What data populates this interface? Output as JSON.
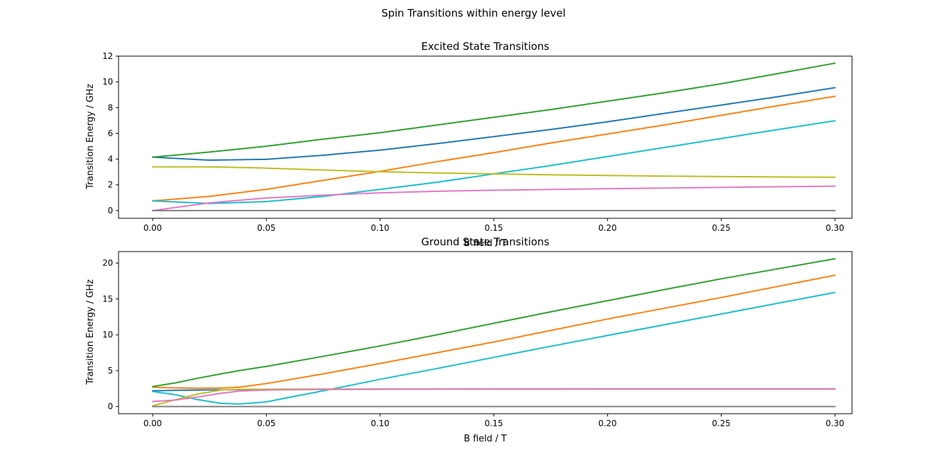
{
  "figure": {
    "title": "Spin Transitions within energy level"
  },
  "chart_data": [
    {
      "type": "line",
      "title": "Excited State Transitions",
      "xlabel": "B field / T",
      "ylabel": "Transition Energy / GHz",
      "xlim": [
        -0.015,
        0.3075
      ],
      "ylim": [
        -0.6,
        12
      ],
      "xticks": [
        0.0,
        0.05,
        0.1,
        0.15,
        0.2,
        0.25,
        0.3
      ],
      "xtick_labels": [
        "0.00",
        "0.05",
        "0.10",
        "0.15",
        "0.20",
        "0.25",
        "0.30"
      ],
      "yticks": [
        0,
        2,
        4,
        6,
        8,
        10,
        12
      ],
      "ytick_labels": [
        "0",
        "2",
        "4",
        "6",
        "8",
        "10",
        "12"
      ],
      "grid": false,
      "x": [
        0.0,
        0.025,
        0.05,
        0.075,
        0.1,
        0.125,
        0.15,
        0.175,
        0.2,
        0.225,
        0.25,
        0.275,
        0.3
      ],
      "series": [
        {
          "color": "#1f77b4",
          "values": [
            4.15,
            3.92,
            3.98,
            4.3,
            4.7,
            5.2,
            5.75,
            6.3,
            6.9,
            7.55,
            8.2,
            8.85,
            9.55
          ]
        },
        {
          "color": "#ff7f0e",
          "values": [
            0.75,
            1.1,
            1.65,
            2.35,
            3.05,
            3.8,
            4.5,
            5.25,
            5.95,
            6.65,
            7.4,
            8.15,
            8.88
          ]
        },
        {
          "color": "#2ca02c",
          "values": [
            4.15,
            4.55,
            5.0,
            5.55,
            6.05,
            6.65,
            7.25,
            7.85,
            8.5,
            9.15,
            9.85,
            10.65,
            11.45
          ]
        },
        {
          "color": "#17becf",
          "values": [
            0.75,
            0.55,
            0.7,
            1.1,
            1.65,
            2.2,
            2.85,
            3.5,
            4.2,
            4.9,
            5.6,
            6.3,
            6.98
          ]
        },
        {
          "color": "#bcbd22",
          "values": [
            3.4,
            3.4,
            3.3,
            3.15,
            3.02,
            2.92,
            2.85,
            2.78,
            2.72,
            2.68,
            2.64,
            2.61,
            2.59
          ]
        },
        {
          "color": "#e377c2",
          "values": [
            0.0,
            0.6,
            0.98,
            1.2,
            1.38,
            1.5,
            1.58,
            1.64,
            1.7,
            1.75,
            1.8,
            1.85,
            1.9
          ]
        },
        {
          "color": "#7f7f7f",
          "values": [
            0.0,
            0.0,
            0.0,
            0.0,
            0.0,
            0.0,
            0.0,
            0.0,
            0.0,
            0.0,
            0.0,
            0.0,
            0.0
          ]
        }
      ]
    },
    {
      "type": "line",
      "title": "Ground State Transitions",
      "xlabel": "B field / T",
      "ylabel": "Transition Energy / GHz",
      "xlim": [
        -0.015,
        0.3075
      ],
      "ylim": [
        -1.0,
        21.6
      ],
      "xticks": [
        0.0,
        0.05,
        0.1,
        0.15,
        0.2,
        0.25,
        0.3
      ],
      "xtick_labels": [
        "0.00",
        "0.05",
        "0.10",
        "0.15",
        "0.20",
        "0.25",
        "0.30"
      ],
      "yticks": [
        0,
        5,
        10,
        15,
        20
      ],
      "ytick_labels": [
        "0",
        "5",
        "10",
        "15",
        "20"
      ],
      "grid": false,
      "x": [
        0.0,
        0.01,
        0.02,
        0.03,
        0.038,
        0.05,
        0.075,
        0.1,
        0.125,
        0.15,
        0.175,
        0.2,
        0.225,
        0.25,
        0.275,
        0.3
      ],
      "series": [
        {
          "color": "#1f77b4",
          "values": [
            2.2,
            2.25,
            2.3,
            2.33,
            2.35,
            2.37,
            2.4,
            2.42,
            2.43,
            2.44,
            2.44,
            2.45,
            2.45,
            2.45,
            2.45,
            2.45
          ]
        },
        {
          "color": "#ff7f0e",
          "values": [
            2.7,
            2.6,
            2.55,
            2.58,
            2.7,
            3.2,
            4.55,
            6.0,
            7.5,
            9.0,
            10.6,
            12.2,
            13.7,
            15.2,
            16.75,
            18.3
          ]
        },
        {
          "color": "#2ca02c",
          "values": [
            2.8,
            3.3,
            3.95,
            4.55,
            5.0,
            5.6,
            7.0,
            8.45,
            10.0,
            11.6,
            13.2,
            14.75,
            16.3,
            17.8,
            19.2,
            20.6
          ]
        },
        {
          "color": "#17becf",
          "values": [
            2.1,
            1.65,
            0.95,
            0.45,
            0.35,
            0.65,
            2.2,
            3.8,
            5.3,
            6.85,
            8.4,
            9.9,
            11.4,
            12.9,
            14.4,
            15.9
          ]
        },
        {
          "color": "#bcbd22",
          "values": [
            0.1,
            0.95,
            1.75,
            2.3,
            2.4,
            2.42,
            2.44,
            2.45,
            2.45,
            2.45,
            2.45,
            2.45,
            2.45,
            2.45,
            2.45,
            2.45
          ]
        },
        {
          "color": "#e377c2",
          "values": [
            0.7,
            0.9,
            1.35,
            1.85,
            2.15,
            2.3,
            2.38,
            2.42,
            2.44,
            2.45,
            2.45,
            2.45,
            2.45,
            2.45,
            2.45,
            2.45
          ]
        },
        {
          "color": "#7f7f7f",
          "values": [
            0.0,
            0.0,
            0.0,
            0.0,
            0.0,
            0.0,
            0.0,
            0.0,
            0.0,
            0.0,
            0.0,
            0.0,
            0.0,
            0.0,
            0.0,
            0.0
          ]
        }
      ]
    }
  ]
}
